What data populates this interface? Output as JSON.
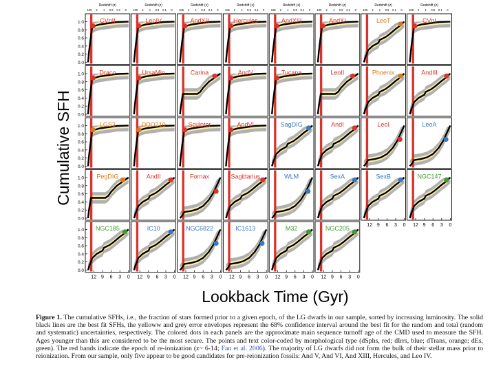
{
  "figure": {
    "ylabel": "Cumulative SFH",
    "xlabel": "Lookback Time (Gyr)",
    "top_axis_label": "Redshift (z)",
    "top_ticks": [
      "105",
      "2",
      "1",
      "0.5",
      "0.1",
      "0"
    ],
    "x_ticks": [
      "12",
      "9",
      "6",
      "3",
      "0"
    ],
    "y_ticks": [
      "0.0",
      "0.2",
      "0.4",
      "0.6",
      "0.8",
      "1.0"
    ],
    "colors": {
      "dSph": "#d9342b",
      "dIrr": "#3a78c2",
      "dTrans": "#d97a1e",
      "dE": "#3f9a2c",
      "reion_band": "#d9342b",
      "yellow_env": "#fbeeb0",
      "grey_env": "#b0b0b0"
    },
    "panels": [
      {
        "name": "CVnII",
        "type": "dSph",
        "shape": "early"
      },
      {
        "name": "LeoIV",
        "type": "dSph",
        "shape": "early"
      },
      {
        "name": "AndXII",
        "type": "dSph",
        "shape": "early"
      },
      {
        "name": "Hercules",
        "type": "dSph",
        "shape": "early"
      },
      {
        "name": "AndXIII",
        "type": "dSph",
        "shape": "early"
      },
      {
        "name": "AndXI",
        "type": "dSph",
        "shape": "early"
      },
      {
        "name": "LeoT",
        "type": "dTrans",
        "shape": "mid"
      },
      {
        "name": "CVnI",
        "type": "dSph",
        "shape": "early"
      },
      {
        "name": "Draco",
        "type": "dSph",
        "shape": "early"
      },
      {
        "name": "UrsaMin",
        "type": "dSph",
        "shape": "early"
      },
      {
        "name": "Carina",
        "type": "dSph",
        "shape": "step"
      },
      {
        "name": "AndV",
        "type": "dSph",
        "shape": "early"
      },
      {
        "name": "Tucana",
        "type": "dSph",
        "shape": "early"
      },
      {
        "name": "LeoII",
        "type": "dSph",
        "shape": "step"
      },
      {
        "name": "Phoenix",
        "type": "dTrans",
        "shape": "mid"
      },
      {
        "name": "AndIII",
        "type": "dSph",
        "shape": "mid"
      },
      {
        "name": "LGS3",
        "type": "dTrans",
        "shape": "early"
      },
      {
        "name": "DDO210",
        "type": "dTrans",
        "shape": "early"
      },
      {
        "name": "Sculptor",
        "type": "dSph",
        "shape": "early"
      },
      {
        "name": "AndVI",
        "type": "dSph",
        "shape": "early"
      },
      {
        "name": "SagDIG",
        "type": "dIrr",
        "shape": "mid"
      },
      {
        "name": "AndI",
        "type": "dSph",
        "shape": "mid"
      },
      {
        "name": "LeoI",
        "type": "dSph",
        "shape": "late"
      },
      {
        "name": "LeoA",
        "type": "dIrr",
        "shape": "late"
      },
      {
        "name": "PegDIG",
        "type": "dTrans",
        "shape": "step"
      },
      {
        "name": "AndII",
        "type": "dSph",
        "shape": "mid"
      },
      {
        "name": "Fornax",
        "type": "dSph",
        "shape": "late"
      },
      {
        "name": "Sagittarius",
        "type": "dSph",
        "shape": "mid"
      },
      {
        "name": "WLM",
        "type": "dIrr",
        "shape": "late"
      },
      {
        "name": "SexA",
        "type": "dIrr",
        "shape": "mid"
      },
      {
        "name": "SexB",
        "type": "dIrr",
        "shape": "mid"
      },
      {
        "name": "NGC147",
        "type": "dE",
        "shape": "mid"
      },
      {
        "name": "NGC185",
        "type": "dE",
        "shape": "mid"
      },
      {
        "name": "IC10",
        "type": "dIrr",
        "shape": "mid"
      },
      {
        "name": "NGC6822",
        "type": "dIrr",
        "shape": "late"
      },
      {
        "name": "IC1613",
        "type": "dIrr",
        "shape": "late"
      },
      {
        "name": "M32",
        "type": "dE",
        "shape": "mid"
      },
      {
        "name": "NGC205",
        "type": "dE",
        "shape": "mid"
      }
    ]
  },
  "caption": {
    "lead": "Figure 1.",
    "text1": " The cumulative SFHs, i.e., the fraction of stars formed prior to a given epoch, of the LG dwarfs in our sample, sorted by increasing luminosity. The solid black lines are the best fit SFHs, the yelloww and grey error envelopes represent the 68% confidence interval around the best fit for the random and total (random and systematic) uncertainties, respectively. The colored dots in each panels are the approximate main sequence turnoff age of the CMD used to measure the SFH. Ages younger than this are considered to be the most secure. The points and text color-coded by morphological type (dSphs, red; dIrrs, blue; dTrans, orange; dEs, green). The red bands indicate the epoch of re-ionization (z~ 6-14; ",
    "cite": "Fan et al. 2006",
    "text2": "). The majority of LG dwarfs did not form the bulk of their stellar mass prior to reionization. From our sample, only five appear to be good candidates for pre-reionization fossils: And V, And VI, And XIII, Hercules, and Leo IV."
  }
}
